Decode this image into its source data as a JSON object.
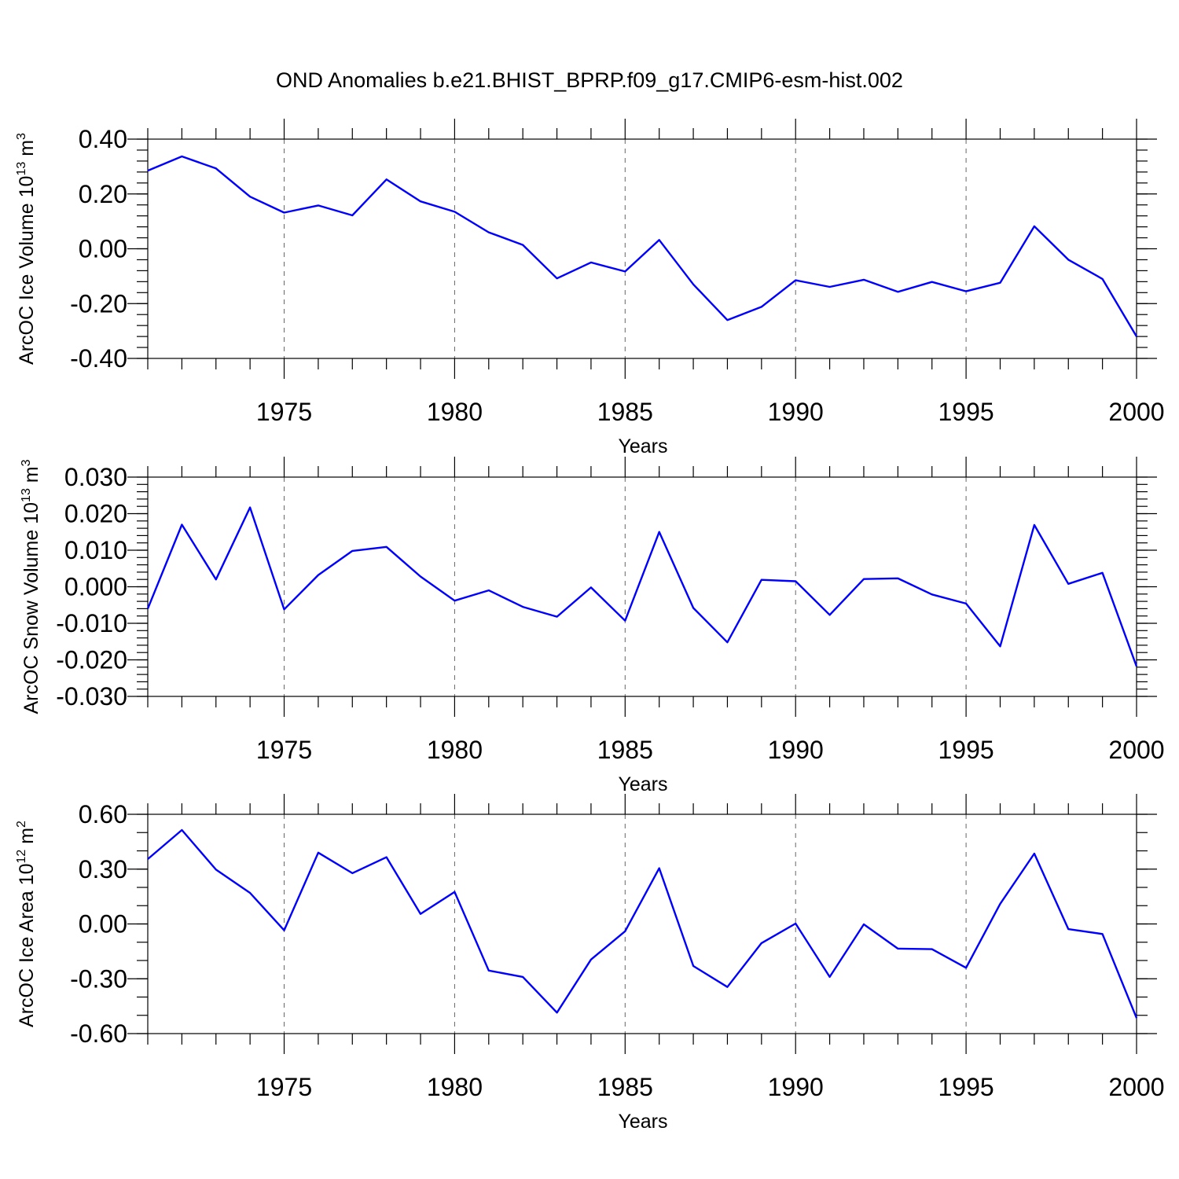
{
  "chart_data": {
    "title": "OND Anomalies b.e21.BHIST_BPRP.f09_g17.CMIP6-esm-hist.002",
    "type": "line",
    "panels": [
      {
        "ylabel_main": "ArcOC Ice Volume 10",
        "ylabel_sup1": "13",
        "ylabel_mid": " m",
        "ylabel_sup2": "3",
        "xlabel": "Years",
        "xlim": [
          1971,
          2000
        ],
        "ylim": [
          -0.4,
          0.4
        ],
        "yticks": [
          0.4,
          0.2,
          0.0,
          -0.2,
          -0.4
        ],
        "ytick_labels": [
          "0.40",
          "0.20",
          "0.00",
          "-0.20",
          "-0.40"
        ],
        "yminor_step": 0.04,
        "xticks": [
          1975,
          1980,
          1985,
          1990,
          1995,
          2000
        ],
        "xtick_labels": [
          "1975",
          "1980",
          "1985",
          "1990",
          "1995",
          "2000"
        ],
        "grid_x": [
          1975,
          1980,
          1985,
          1990,
          1995
        ],
        "series": {
          "color": "#0000ff",
          "x": [
            1971,
            1972,
            1973,
            1974,
            1975,
            1976,
            1977,
            1978,
            1979,
            1980,
            1981,
            1982,
            1983,
            1984,
            1985,
            1986,
            1987,
            1988,
            1989,
            1990,
            1991,
            1992,
            1993,
            1994,
            1995,
            1996,
            1997,
            1998,
            1999,
            2000
          ],
          "y": [
            0.285,
            0.337,
            0.293,
            0.19,
            0.132,
            0.158,
            0.122,
            0.253,
            0.173,
            0.135,
            0.06,
            0.014,
            -0.108,
            -0.05,
            -0.083,
            0.032,
            -0.13,
            -0.26,
            -0.212,
            -0.115,
            -0.139,
            -0.113,
            -0.157,
            -0.121,
            -0.155,
            -0.124,
            0.082,
            -0.04,
            -0.11,
            -0.32
          ]
        }
      },
      {
        "ylabel_main": "ArcOC Snow Volume 10",
        "ylabel_sup1": "13",
        "ylabel_mid": " m",
        "ylabel_sup2": "3",
        "xlabel": "Years",
        "xlim": [
          1971,
          2000
        ],
        "ylim": [
          -0.03,
          0.03
        ],
        "yticks": [
          0.03,
          0.02,
          0.01,
          0.0,
          -0.01,
          -0.02,
          -0.03
        ],
        "ytick_labels": [
          "0.030",
          "0.020",
          "0.010",
          "0.000",
          "-0.010",
          "-0.020",
          "-0.030"
        ],
        "yminor_step": 0.002,
        "xticks": [
          1975,
          1980,
          1985,
          1990,
          1995,
          2000
        ],
        "xtick_labels": [
          "1975",
          "1980",
          "1985",
          "1990",
          "1995",
          "2000"
        ],
        "grid_x": [
          1975,
          1980,
          1985,
          1990,
          1995
        ],
        "series": {
          "color": "#0000ff",
          "x": [
            1971,
            1972,
            1973,
            1974,
            1975,
            1976,
            1977,
            1978,
            1979,
            1980,
            1981,
            1982,
            1983,
            1984,
            1985,
            1986,
            1987,
            1988,
            1989,
            1990,
            1991,
            1992,
            1993,
            1994,
            1995,
            1996,
            1997,
            1998,
            1999,
            2000
          ],
          "y": [
            -0.006,
            0.017,
            0.002,
            0.0217,
            -0.0062,
            0.0032,
            0.0098,
            0.0109,
            0.0028,
            -0.0038,
            -0.001,
            -0.0055,
            -0.0082,
            -0.0002,
            -0.0093,
            0.015,
            -0.0058,
            -0.0152,
            0.0019,
            0.0015,
            -0.0077,
            0.0021,
            0.0023,
            -0.0021,
            -0.0046,
            -0.0163,
            0.0169,
            0.0008,
            0.0038,
            -0.0218
          ]
        }
      },
      {
        "ylabel_main": "ArcOC Ice Area 10",
        "ylabel_sup1": "12",
        "ylabel_mid": " m",
        "ylabel_sup2": "2",
        "xlabel": "Years",
        "xlim": [
          1971,
          2000
        ],
        "ylim": [
          -0.6,
          0.6
        ],
        "yticks": [
          0.6,
          0.3,
          0.0,
          -0.3,
          -0.6
        ],
        "ytick_labels": [
          "0.60",
          "0.30",
          "0.00",
          "-0.30",
          "-0.60"
        ],
        "yminor_step": 0.1,
        "xticks": [
          1975,
          1980,
          1985,
          1990,
          1995,
          2000
        ],
        "xtick_labels": [
          "1975",
          "1980",
          "1985",
          "1990",
          "1995",
          "2000"
        ],
        "grid_x": [
          1975,
          1980,
          1985,
          1990,
          1995
        ],
        "series": {
          "color": "#0000ff",
          "x": [
            1971,
            1972,
            1973,
            1974,
            1975,
            1976,
            1977,
            1978,
            1979,
            1980,
            1981,
            1982,
            1983,
            1984,
            1985,
            1986,
            1987,
            1988,
            1989,
            1990,
            1991,
            1992,
            1993,
            1994,
            1995,
            1996,
            1997,
            1998,
            1999,
            2000
          ],
          "y": [
            0.355,
            0.514,
            0.297,
            0.17,
            -0.035,
            0.39,
            0.278,
            0.365,
            0.055,
            0.175,
            -0.255,
            -0.29,
            -0.485,
            -0.195,
            -0.04,
            0.305,
            -0.23,
            -0.345,
            -0.105,
            0.002,
            -0.29,
            -0.002,
            -0.135,
            -0.138,
            -0.24,
            0.11,
            0.385,
            -0.028,
            -0.055,
            -0.515
          ]
        }
      }
    ]
  }
}
